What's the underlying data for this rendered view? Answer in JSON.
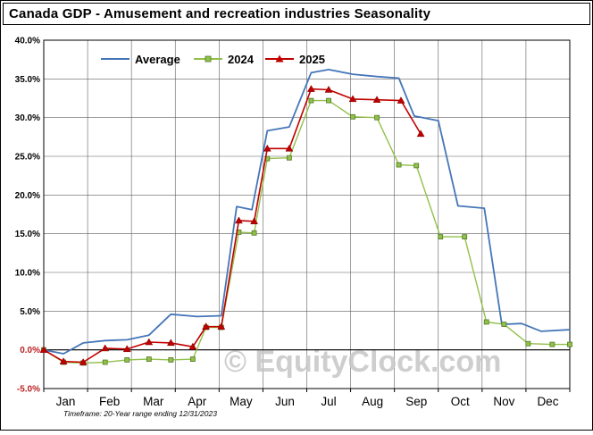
{
  "chart_data": {
    "type": "line",
    "title": "Canada GDP - Amusement and recreation industries Seasonality",
    "watermark": "© EquityClock.com",
    "footnote": "Timeframe: 20-Year range ending 12/31/2023",
    "x_unit": "month",
    "x_tick_labels": [
      "Jan",
      "Feb",
      "Mar",
      "Apr",
      "May",
      "Jun",
      "Jul",
      "Aug",
      "Sep",
      "Oct",
      "Nov",
      "Dec"
    ],
    "xlim": [
      0,
      12
    ],
    "ylim": [
      -5,
      40
    ],
    "y_tick_step": 5,
    "y_tick_format": "0.0%",
    "grid": true,
    "legend_position": "top-inside",
    "colors": {
      "background": "#ffffff",
      "grid": "#5f5f5f",
      "axis": "#000000",
      "tick_label": "#000000",
      "tick_label_nonpositive": "#bb2222",
      "watermark": "#c6c6c6",
      "title": "#000000"
    },
    "series": [
      {
        "name": "Average",
        "color": "#4576b8",
        "marker": "none",
        "line_width": 1.8,
        "x": [
          0,
          0.45,
          0.9,
          1.4,
          1.9,
          2.4,
          2.9,
          3.5,
          4.05,
          4.4,
          4.75,
          5.1,
          5.6,
          6.1,
          6.5,
          7.05,
          7.6,
          8.1,
          8.45,
          9.0,
          9.45,
          10.05,
          10.45,
          10.9,
          11.35,
          12
        ],
        "values": [
          0.0,
          -0.5,
          0.9,
          1.2,
          1.3,
          1.9,
          4.6,
          4.3,
          4.4,
          18.5,
          18.1,
          28.3,
          28.8,
          35.8,
          36.2,
          35.6,
          35.3,
          35.1,
          30.2,
          29.6,
          18.6,
          18.3,
          3.3,
          3.4,
          2.4,
          2.6
        ]
      },
      {
        "name": "2024",
        "color": "#93c04b",
        "marker": "square",
        "marker_edge": "#4e7a22",
        "line_width": 1.4,
        "x": [
          0,
          0.45,
          0.9,
          1.4,
          1.9,
          2.4,
          2.9,
          3.4,
          3.7,
          4.05,
          4.45,
          4.8,
          5.1,
          5.6,
          6.1,
          6.5,
          7.05,
          7.6,
          8.1,
          8.5,
          9.05,
          9.6,
          10.1,
          10.5,
          11.05,
          11.6,
          12
        ],
        "values": [
          0.0,
          -1.6,
          -1.7,
          -1.6,
          -1.3,
          -1.2,
          -1.3,
          -1.2,
          2.9,
          2.9,
          15.2,
          15.1,
          24.7,
          24.8,
          32.2,
          32.2,
          30.1,
          30.0,
          23.9,
          23.8,
          14.6,
          14.6,
          3.6,
          3.3,
          0.8,
          0.7,
          0.7
        ]
      },
      {
        "name": "2025",
        "color": "#c00000",
        "marker": "triangle",
        "marker_edge": "#7a0000",
        "line_width": 1.6,
        "x": [
          0,
          0.45,
          0.9,
          1.4,
          1.9,
          2.4,
          2.9,
          3.4,
          3.7,
          4.05,
          4.45,
          4.8,
          5.1,
          5.6,
          6.1,
          6.5,
          7.05,
          7.6,
          8.15,
          8.6
        ],
        "values": [
          0.0,
          -1.5,
          -1.6,
          0.2,
          0.1,
          1.0,
          0.9,
          0.4,
          3.0,
          3.0,
          16.7,
          16.6,
          26.0,
          26.0,
          33.7,
          33.6,
          32.4,
          32.3,
          32.2,
          27.9
        ]
      }
    ]
  }
}
